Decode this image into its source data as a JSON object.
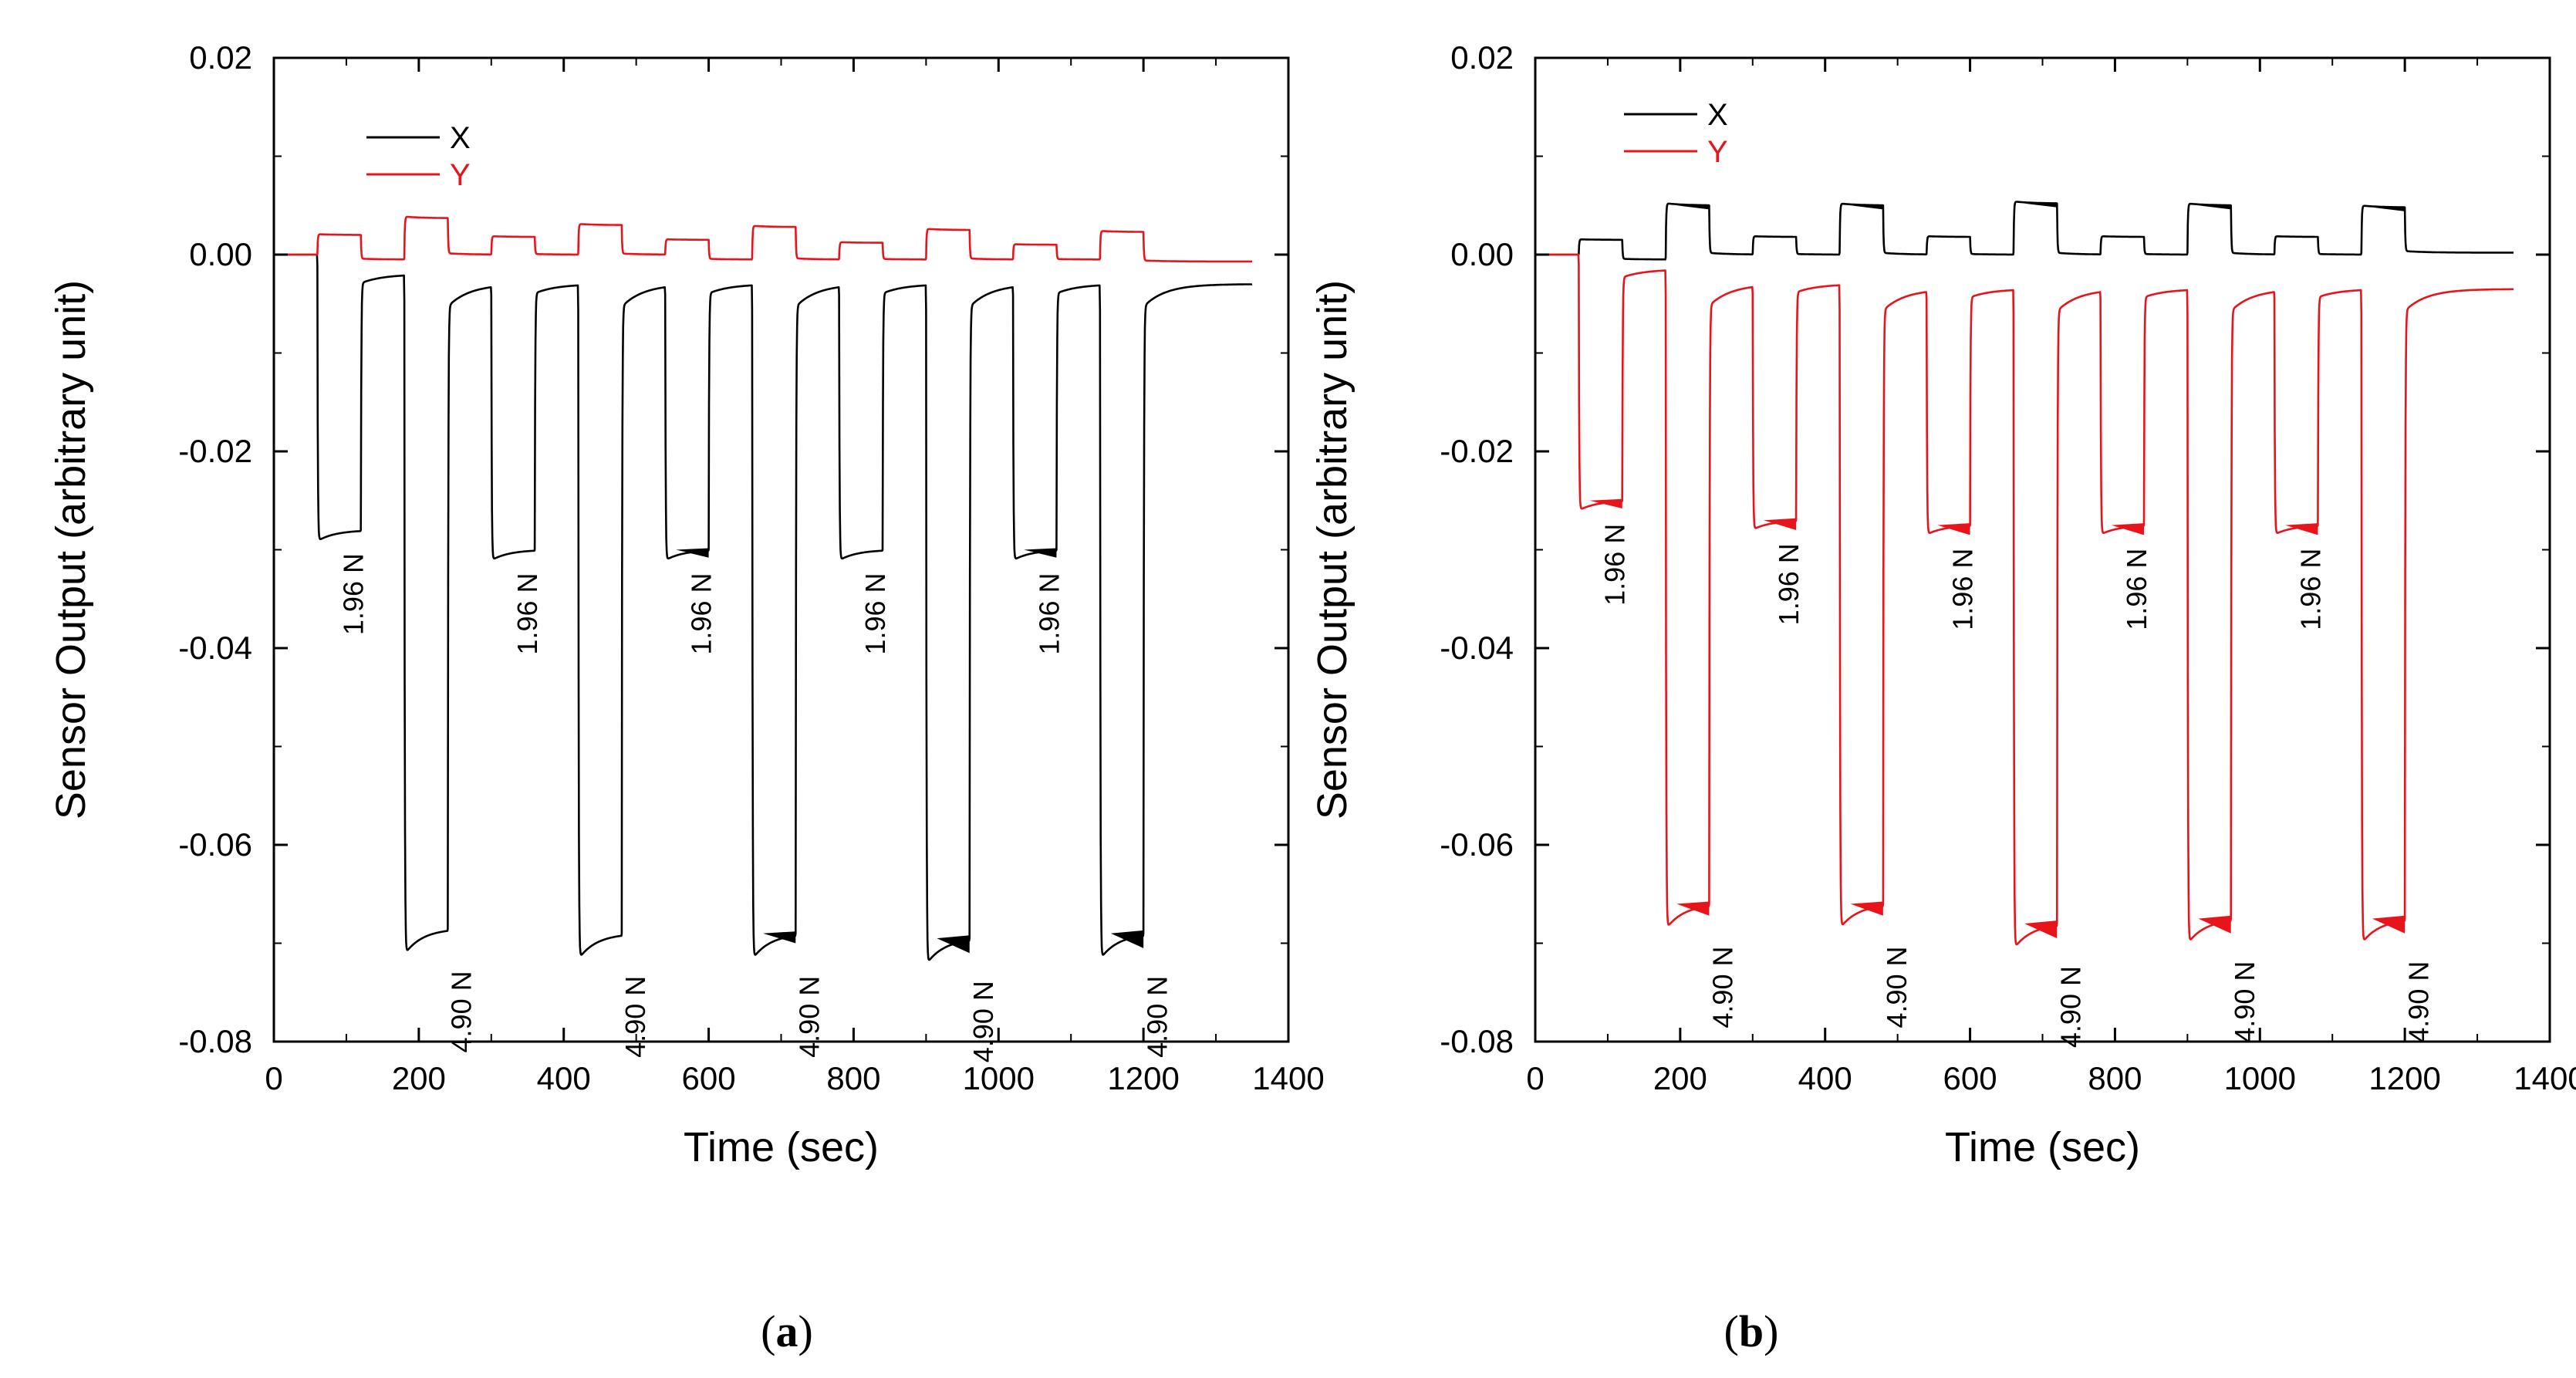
{
  "chart_data": [
    {
      "id": "a",
      "type": "line",
      "panel_label": "(a)",
      "panel_letter": "a",
      "xlabel": "Time (sec)",
      "ylabel": "Sensor Output (arbitrary unit)",
      "xlim": [
        0,
        1400
      ],
      "ylim": [
        -0.08,
        0.02
      ],
      "xticks": [
        0,
        200,
        400,
        600,
        800,
        1000,
        1200,
        1400
      ],
      "yticks": [
        0.02,
        0.0,
        -0.02,
        -0.04,
        -0.06,
        -0.08
      ],
      "ytick_labels": [
        "0.02",
        "0.00",
        "-0.02",
        "-0.04",
        "-0.06",
        "-0.08"
      ],
      "legend": {
        "placement": "top-left",
        "entries": [
          {
            "name": "X",
            "color": "#000000"
          },
          {
            "name": "Y",
            "color": "#e8141b"
          }
        ]
      },
      "load_cycles": [
        {
          "start": 60,
          "end": 120,
          "force": "1.96 N"
        },
        {
          "start": 180,
          "end": 240,
          "force": "4.90 N"
        },
        {
          "start": 300,
          "end": 360,
          "force": "1.96 N"
        },
        {
          "start": 420,
          "end": 480,
          "force": "4.90 N"
        },
        {
          "start": 540,
          "end": 600,
          "force": "1.96 N"
        },
        {
          "start": 660,
          "end": 720,
          "force": "4.90 N"
        },
        {
          "start": 780,
          "end": 840,
          "force": "1.96 N"
        },
        {
          "start": 900,
          "end": 960,
          "force": "4.90 N"
        },
        {
          "start": 1020,
          "end": 1080,
          "force": "1.96 N"
        },
        {
          "start": 1140,
          "end": 1200,
          "force": "4.90 N"
        }
      ],
      "series": [
        {
          "name": "X",
          "color": "#000000",
          "baseline": [
            0.0,
            -0.002,
            -0.003,
            -0.003,
            -0.003,
            -0.003,
            -0.003,
            -0.003,
            -0.003,
            -0.003,
            -0.003
          ],
          "levels": [
            -0.028,
            -0.0685,
            -0.03,
            -0.069,
            -0.03,
            -0.069,
            -0.03,
            -0.0695,
            -0.03,
            -0.069
          ],
          "end_value": -0.003,
          "spread": [
            0,
            0,
            0,
            0,
            0.0008,
            0.001,
            0,
            0.0015,
            0.0008,
            0.0015
          ]
        },
        {
          "name": "Y",
          "color": "#e8141b",
          "baseline": [
            0.0,
            -0.0005,
            0.0,
            0.0,
            0.0,
            -0.0005,
            -0.0005,
            -0.0005,
            -0.0005,
            -0.0005,
            -0.0005
          ],
          "levels": [
            0.002,
            0.0037,
            0.0018,
            0.003,
            0.0015,
            0.0028,
            0.0012,
            0.0025,
            0.001,
            0.0023
          ],
          "end_value": -0.0007,
          "spread": [
            0,
            0,
            0,
            0,
            0,
            0,
            0,
            0,
            0,
            0
          ]
        }
      ]
    },
    {
      "id": "b",
      "type": "line",
      "panel_label": "(b)",
      "panel_letter": "b",
      "xlabel": "Time (sec)",
      "ylabel": "Sensor Output (arbitrary unit)",
      "xlim": [
        0,
        1400
      ],
      "ylim": [
        -0.08,
        0.02
      ],
      "xticks": [
        0,
        200,
        400,
        600,
        800,
        1000,
        1200,
        1400
      ],
      "yticks": [
        0.02,
        0.0,
        -0.02,
        -0.04,
        -0.06,
        -0.08
      ],
      "ytick_labels": [
        "0.02",
        "0.00",
        "-0.02",
        "-0.04",
        "-0.06",
        "-0.08"
      ],
      "legend": {
        "placement": "top-left",
        "entries": [
          {
            "name": "X",
            "color": "#000000"
          },
          {
            "name": "Y",
            "color": "#e8141b"
          }
        ]
      },
      "load_cycles": [
        {
          "start": 60,
          "end": 120,
          "force": "1.96 N"
        },
        {
          "start": 180,
          "end": 240,
          "force": "4.90 N"
        },
        {
          "start": 300,
          "end": 360,
          "force": "1.96 N"
        },
        {
          "start": 420,
          "end": 480,
          "force": "4.90 N"
        },
        {
          "start": 540,
          "end": 600,
          "force": "1.96 N"
        },
        {
          "start": 660,
          "end": 720,
          "force": "4.90 N"
        },
        {
          "start": 780,
          "end": 840,
          "force": "1.96 N"
        },
        {
          "start": 900,
          "end": 960,
          "force": "4.90 N"
        },
        {
          "start": 1020,
          "end": 1080,
          "force": "1.96 N"
        },
        {
          "start": 1140,
          "end": 1200,
          "force": "4.90 N"
        }
      ],
      "series": [
        {
          "name": "X",
          "color": "#000000",
          "baseline": [
            0.0,
            -0.0005,
            0.0,
            0.0,
            0.0,
            0.0,
            0.0,
            0.0,
            0.0,
            0.0,
            0.0
          ],
          "levels": [
            0.0015,
            0.005,
            0.0018,
            0.005,
            0.0018,
            0.0052,
            0.0018,
            0.005,
            0.0018,
            0.0048
          ],
          "end_value": 0.0002,
          "spread": [
            0,
            0.0004,
            0,
            0.0004,
            0,
            0.0004,
            0,
            0.0004,
            0,
            0.0004
          ]
        },
        {
          "name": "Y",
          "color": "#e8141b",
          "baseline": [
            0.0,
            -0.0015,
            -0.003,
            -0.003,
            -0.0035,
            -0.0035,
            -0.0035,
            -0.0035,
            -0.0035,
            -0.0035,
            -0.0035
          ],
          "levels": [
            -0.025,
            -0.066,
            -0.027,
            -0.066,
            -0.0275,
            -0.068,
            -0.0275,
            -0.0675,
            -0.0275,
            -0.0675
          ],
          "end_value": -0.0035,
          "spread": [
            0.0008,
            0.0012,
            0.001,
            0.0012,
            0.001,
            0.0015,
            0.001,
            0.0015,
            0.001,
            0.0015
          ]
        }
      ]
    }
  ]
}
